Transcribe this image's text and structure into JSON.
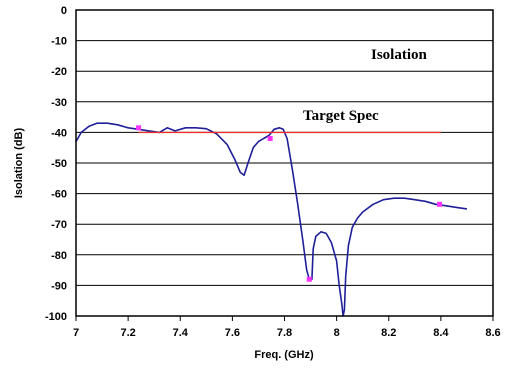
{
  "chart_data": {
    "type": "line",
    "title": "",
    "xlabel": "Freq. (GHz)",
    "ylabel": "Isolation (dB)",
    "xlim": [
      7,
      8.6
    ],
    "ylim": [
      -100,
      0
    ],
    "x_ticks": [
      "7",
      "7.2",
      "7.4",
      "7.6",
      "7.8",
      "8",
      "8.2",
      "8.4",
      "8.6"
    ],
    "y_ticks": [
      "0",
      "-10",
      "-20",
      "-30",
      "-40",
      "-50",
      "-60",
      "-70",
      "-80",
      "-90",
      "-100"
    ],
    "grid": "horizontal",
    "annotations": [
      {
        "text": "Isolation",
        "x": 8.35,
        "y": -15
      },
      {
        "text": "Target Spec",
        "x": 7.88,
        "y": -35
      }
    ],
    "series": [
      {
        "color": "#1f1f99",
        "x": [
          7.0,
          7.02,
          7.05,
          7.08,
          7.12,
          7.16,
          7.2,
          7.24,
          7.28,
          7.32,
          7.35,
          7.38,
          7.42,
          7.46,
          7.5,
          7.54,
          7.58,
          7.61,
          7.63,
          7.645,
          7.66,
          7.68,
          7.7,
          7.72,
          7.74,
          7.76,
          7.78,
          7.795,
          7.81,
          7.83,
          7.85,
          7.87,
          7.885,
          7.895,
          7.905,
          7.91,
          7.92,
          7.94,
          7.96,
          7.98,
          8.0,
          8.01,
          8.02,
          8.025,
          8.03,
          8.035,
          8.045,
          8.06,
          8.08,
          8.1,
          8.14,
          8.18,
          8.22,
          8.26,
          8.3,
          8.34,
          8.38,
          8.42,
          8.46,
          8.5
        ],
        "values": [
          -43,
          -40,
          -38,
          -37,
          -37,
          -37.5,
          -38.5,
          -39,
          -39.5,
          -40,
          -38.5,
          -39.5,
          -38.5,
          -38.5,
          -38.8,
          -40.5,
          -44,
          -49,
          -53,
          -54,
          -50,
          -45,
          -43,
          -42,
          -41,
          -39,
          -38.5,
          -39,
          -42,
          -52,
          -63,
          -75,
          -85,
          -88,
          -88,
          -78,
          -74,
          -72.5,
          -73,
          -76,
          -82,
          -90,
          -96,
          -100,
          -98,
          -87,
          -77,
          -71,
          -68,
          -66,
          -63.5,
          -62,
          -61.5,
          -61.5,
          -62,
          -62.5,
          -63.5,
          -64,
          -64.5,
          -65
        ]
      },
      {
        "color": "#e8332a",
        "x": [
          7.24,
          8.4
        ],
        "values": [
          -40,
          -40
        ]
      }
    ],
    "markers": {
      "color": "#ff33ff",
      "points": [
        {
          "x": 7.24,
          "y": -38.5
        },
        {
          "x": 7.745,
          "y": -42
        },
        {
          "x": 7.895,
          "y": -88
        },
        {
          "x": 8.395,
          "y": -63.5
        }
      ]
    }
  }
}
